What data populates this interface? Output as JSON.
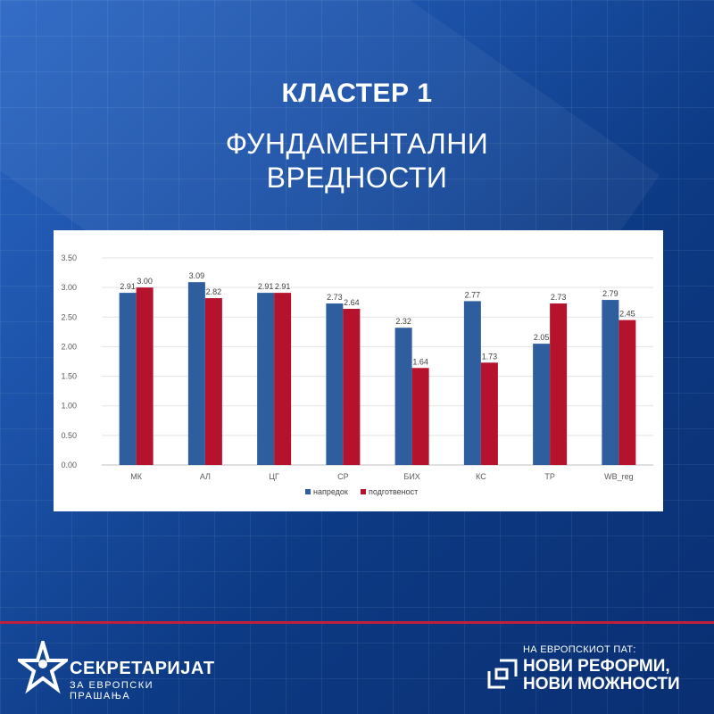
{
  "header": {
    "title": "КЛАСТЕР 1",
    "subtitle_line1": "ФУНДАМЕНТАЛНИ",
    "subtitle_line2": "ВРЕДНОСТИ"
  },
  "chart_data": {
    "type": "bar",
    "categories": [
      "МК",
      "АЛ",
      "ЦГ",
      "СР",
      "БИХ",
      "КС",
      "ТР",
      "WB_reg"
    ],
    "series": [
      {
        "name": "напредок",
        "color": "#2e5e9e",
        "values": [
          2.91,
          3.09,
          2.91,
          2.73,
          2.32,
          2.77,
          2.05,
          2.79
        ]
      },
      {
        "name": "подготвеност",
        "color": "#b5122d",
        "values": [
          3.0,
          2.82,
          2.91,
          2.64,
          1.64,
          1.73,
          2.73,
          2.45
        ]
      }
    ],
    "ylim": [
      0,
      3.5
    ],
    "yticks": [
      "0.00",
      "0.50",
      "1.00",
      "1.50",
      "2.00",
      "2.50",
      "3.00",
      "3.50"
    ],
    "grid": true,
    "legend": "bottom-center"
  },
  "footer": {
    "left_logo_name": "СЕКРЕТАРИЈАТ",
    "left_logo_sub": "ЗА ЕВРОПСКИ ПРАШАЊА",
    "right_logo_sub": "НА ЕВРОПСКИОТ ПАТ:",
    "right_logo_line1": "НОВИ РЕФОРМИ,",
    "right_logo_line2": "НОВИ МОЖНОСТИ"
  },
  "colors": {
    "background": "#0d3a84",
    "accent_red": "#c0203a"
  }
}
